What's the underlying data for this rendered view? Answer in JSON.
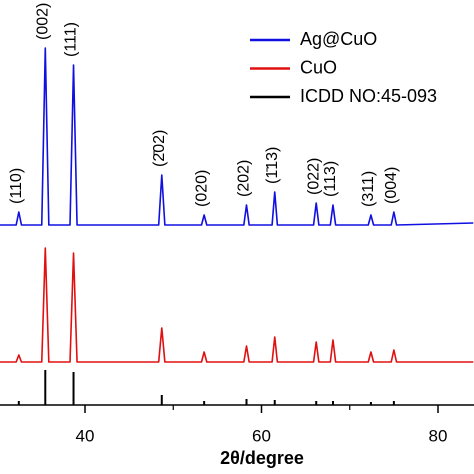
{
  "chart_data": {
    "type": "line",
    "xlabel": "2θ/degree",
    "xlim": [
      30,
      84
    ],
    "xticks": [
      40,
      60,
      80
    ],
    "xminorticks": [
      50,
      70
    ],
    "ylim": [
      0,
      400
    ],
    "legend": "upper right",
    "series": [
      {
        "name": "Ag@CuO",
        "color": "#1010e0",
        "type": "line",
        "x": [
          30,
          32.2,
          32.5,
          32.8,
          35.1,
          35.5,
          35.9,
          38.3,
          38.7,
          39.1,
          48.35,
          48.7,
          49.05,
          53.2,
          53.5,
          53.8,
          58.0,
          58.3,
          58.6,
          61.2,
          61.5,
          61.8,
          65.9,
          66.2,
          66.5,
          67.8,
          68.1,
          68.4,
          72.1,
          72.4,
          72.7,
          74.7,
          75.0,
          75.3,
          84
        ],
        "values": [
          180,
          180,
          193,
          180,
          180,
          357,
          180,
          180,
          340,
          180,
          180,
          230,
          180,
          180,
          190,
          180,
          180,
          200,
          180,
          180,
          213,
          180,
          180,
          202,
          180,
          180,
          200,
          180,
          180,
          190,
          180,
          180,
          193,
          180,
          182
        ]
      },
      {
        "name": "CuO",
        "color": "#e01010",
        "type": "line",
        "x": [
          30,
          32.2,
          32.5,
          32.8,
          35.1,
          35.5,
          35.9,
          38.3,
          38.7,
          39.1,
          48.35,
          48.7,
          49.05,
          53.2,
          53.5,
          53.8,
          58.0,
          58.3,
          58.6,
          61.2,
          61.5,
          61.8,
          65.9,
          66.2,
          66.5,
          67.8,
          68.1,
          68.4,
          72.1,
          72.4,
          72.7,
          74.7,
          75.0,
          75.3,
          84
        ],
        "values": [
          43,
          43,
          50,
          43,
          43,
          157,
          43,
          43,
          152,
          43,
          43,
          77,
          43,
          43,
          53,
          43,
          43,
          59,
          43,
          43,
          68,
          43,
          43,
          63,
          43,
          43,
          65,
          43,
          43,
          53,
          43,
          43,
          55,
          43,
          43
        ]
      },
      {
        "name": "ICDD NO:45-093",
        "color": "#000000",
        "type": "stick",
        "x": [
          32.5,
          35.5,
          38.7,
          48.7,
          53.5,
          58.3,
          61.5,
          66.2,
          68.1,
          72.4,
          75.0
        ],
        "values": [
          4,
          35,
          33,
          10,
          4,
          6,
          5,
          4,
          4,
          3,
          4
        ]
      }
    ],
    "annotations": [
      {
        "text": "(110)",
        "x": 32.5
      },
      {
        "text": "(002)",
        "x": 35.5
      },
      {
        "text": "(111)",
        "x": 38.7
      },
      {
        "text": "(2̄02)",
        "x": 48.7
      },
      {
        "text": "(020)",
        "x": 53.5
      },
      {
        "text": "(202)",
        "x": 58.3
      },
      {
        "text": "(1̄13)",
        "x": 61.5
      },
      {
        "text": "(022)",
        "x": 66.2
      },
      {
        "text": "(113)",
        "x": 68.1
      },
      {
        "text": "(311)",
        "x": 72.4
      },
      {
        "text": "(004)",
        "x": 75.0
      }
    ]
  }
}
